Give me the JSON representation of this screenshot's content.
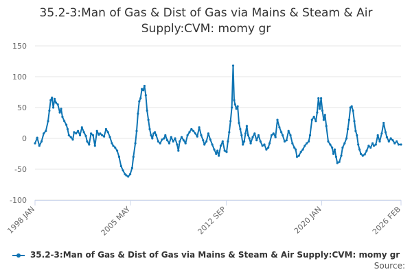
{
  "chart_data": {
    "type": "line",
    "title": "35.2-3:Man of Gas & Dist of Gas via Mains & Steam & Air Supply:CVM: momy gr",
    "xlabel": "",
    "ylabel": "",
    "ylim": [
      -100,
      150
    ],
    "yticks": [
      150,
      100,
      50,
      0,
      -50,
      -100
    ],
    "xlim": [
      1998.0,
      2026.083
    ],
    "xticks": [
      {
        "value": 1998.0,
        "label": "1998 JAN"
      },
      {
        "value": 2005.33,
        "label": "2005 MAY"
      },
      {
        "value": 2012.67,
        "label": "2012 SEP"
      },
      {
        "value": 2020.0,
        "label": "2020 JAN"
      },
      {
        "value": 2026.083,
        "label": "2026 FEB"
      }
    ],
    "legend_position": "bottom",
    "series": [
      {
        "name": "35.2-3:Man of Gas & Dist of Gas via Mains & Steam & Air Supply:CVM: momy gr",
        "color": "#0e74b3",
        "points": [
          [
            1998.0,
            -8
          ],
          [
            1998.17,
            1
          ],
          [
            1998.33,
            -12
          ],
          [
            1998.5,
            -5
          ],
          [
            1998.67,
            8
          ],
          [
            1998.83,
            12
          ],
          [
            1999.0,
            28
          ],
          [
            1999.1,
            45
          ],
          [
            1999.2,
            62
          ],
          [
            1999.3,
            66
          ],
          [
            1999.4,
            50
          ],
          [
            1999.5,
            64
          ],
          [
            1999.6,
            58
          ],
          [
            1999.75,
            55
          ],
          [
            1999.9,
            42
          ],
          [
            2000.0,
            48
          ],
          [
            2000.1,
            35
          ],
          [
            2000.25,
            28
          ],
          [
            2000.4,
            22
          ],
          [
            2000.5,
            15
          ],
          [
            2000.6,
            5
          ],
          [
            2000.75,
            2
          ],
          [
            2000.9,
            -2
          ],
          [
            2001.0,
            10
          ],
          [
            2001.15,
            8
          ],
          [
            2001.3,
            12
          ],
          [
            2001.45,
            5
          ],
          [
            2001.6,
            18
          ],
          [
            2001.75,
            10
          ],
          [
            2001.9,
            4
          ],
          [
            2002.0,
            -5
          ],
          [
            2002.15,
            -10
          ],
          [
            2002.3,
            8
          ],
          [
            2002.45,
            5
          ],
          [
            2002.6,
            -12
          ],
          [
            2002.75,
            12
          ],
          [
            2002.9,
            6
          ],
          [
            2003.0,
            8
          ],
          [
            2003.15,
            5
          ],
          [
            2003.3,
            3
          ],
          [
            2003.45,
            15
          ],
          [
            2003.6,
            10
          ],
          [
            2003.75,
            2
          ],
          [
            2003.9,
            -8
          ],
          [
            2004.0,
            -12
          ],
          [
            2004.15,
            -15
          ],
          [
            2004.3,
            -20
          ],
          [
            2004.45,
            -30
          ],
          [
            2004.6,
            -45
          ],
          [
            2004.75,
            -52
          ],
          [
            2004.9,
            -58
          ],
          [
            2005.0,
            -60
          ],
          [
            2005.15,
            -62
          ],
          [
            2005.3,
            -58
          ],
          [
            2005.45,
            -48
          ],
          [
            2005.55,
            -30
          ],
          [
            2005.7,
            -8
          ],
          [
            2005.8,
            12
          ],
          [
            2005.9,
            40
          ],
          [
            2006.0,
            60
          ],
          [
            2006.1,
            65
          ],
          [
            2006.2,
            80
          ],
          [
            2006.3,
            78
          ],
          [
            2006.4,
            85
          ],
          [
            2006.5,
            70
          ],
          [
            2006.6,
            45
          ],
          [
            2006.7,
            30
          ],
          [
            2006.8,
            15
          ],
          [
            2006.9,
            5
          ],
          [
            2007.0,
            0
          ],
          [
            2007.1,
            8
          ],
          [
            2007.2,
            10
          ],
          [
            2007.3,
            5
          ],
          [
            2007.45,
            -5
          ],
          [
            2007.6,
            -8
          ],
          [
            2007.75,
            -2
          ],
          [
            2007.9,
            0
          ],
          [
            2008.0,
            5
          ],
          [
            2008.15,
            -3
          ],
          [
            2008.3,
            -8
          ],
          [
            2008.45,
            2
          ],
          [
            2008.6,
            -5
          ],
          [
            2008.75,
            0
          ],
          [
            2008.9,
            -10
          ],
          [
            2009.0,
            -20
          ],
          [
            2009.1,
            -5
          ],
          [
            2009.25,
            2
          ],
          [
            2009.4,
            -3
          ],
          [
            2009.55,
            -8
          ],
          [
            2009.7,
            5
          ],
          [
            2009.85,
            10
          ],
          [
            2010.0,
            15
          ],
          [
            2010.15,
            12
          ],
          [
            2010.3,
            8
          ],
          [
            2010.45,
            3
          ],
          [
            2010.6,
            18
          ],
          [
            2010.75,
            5
          ],
          [
            2010.9,
            -3
          ],
          [
            2011.0,
            -10
          ],
          [
            2011.15,
            -5
          ],
          [
            2011.3,
            8
          ],
          [
            2011.45,
            -2
          ],
          [
            2011.6,
            -10
          ],
          [
            2011.75,
            -18
          ],
          [
            2011.9,
            -25
          ],
          [
            2012.0,
            -20
          ],
          [
            2012.1,
            -28
          ],
          [
            2012.25,
            -12
          ],
          [
            2012.4,
            -5
          ],
          [
            2012.55,
            -20
          ],
          [
            2012.7,
            -22
          ],
          [
            2012.8,
            -5
          ],
          [
            2012.9,
            10
          ],
          [
            2013.0,
            28
          ],
          [
            2013.1,
            50
          ],
          [
            2013.2,
            118
          ],
          [
            2013.28,
            62
          ],
          [
            2013.35,
            55
          ],
          [
            2013.45,
            48
          ],
          [
            2013.55,
            52
          ],
          [
            2013.65,
            25
          ],
          [
            2013.75,
            15
          ],
          [
            2013.85,
            5
          ],
          [
            2013.95,
            -10
          ],
          [
            2014.05,
            -5
          ],
          [
            2014.15,
            8
          ],
          [
            2014.25,
            20
          ],
          [
            2014.35,
            5
          ],
          [
            2014.45,
            0
          ],
          [
            2014.55,
            -8
          ],
          [
            2014.7,
            2
          ],
          [
            2014.85,
            8
          ],
          [
            2015.0,
            -3
          ],
          [
            2015.15,
            5
          ],
          [
            2015.3,
            -5
          ],
          [
            2015.45,
            -12
          ],
          [
            2015.6,
            -10
          ],
          [
            2015.75,
            -18
          ],
          [
            2015.9,
            -15
          ],
          [
            2016.0,
            -8
          ],
          [
            2016.15,
            5
          ],
          [
            2016.3,
            8
          ],
          [
            2016.45,
            2
          ],
          [
            2016.6,
            30
          ],
          [
            2016.75,
            18
          ],
          [
            2016.9,
            10
          ],
          [
            2017.0,
            5
          ],
          [
            2017.15,
            -5
          ],
          [
            2017.3,
            -3
          ],
          [
            2017.45,
            12
          ],
          [
            2017.6,
            5
          ],
          [
            2017.75,
            -8
          ],
          [
            2017.9,
            -15
          ],
          [
            2018.0,
            -18
          ],
          [
            2018.1,
            -30
          ],
          [
            2018.25,
            -28
          ],
          [
            2018.4,
            -22
          ],
          [
            2018.55,
            -18
          ],
          [
            2018.7,
            -12
          ],
          [
            2018.85,
            -8
          ],
          [
            2019.0,
            -5
          ],
          [
            2019.1,
            5
          ],
          [
            2019.25,
            30
          ],
          [
            2019.4,
            35
          ],
          [
            2019.55,
            28
          ],
          [
            2019.65,
            42
          ],
          [
            2019.75,
            65
          ],
          [
            2019.85,
            48
          ],
          [
            2019.95,
            65
          ],
          [
            2020.05,
            45
          ],
          [
            2020.15,
            30
          ],
          [
            2020.25,
            38
          ],
          [
            2020.35,
            20
          ],
          [
            2020.5,
            -5
          ],
          [
            2020.65,
            -10
          ],
          [
            2020.8,
            -15
          ],
          [
            2020.9,
            -25
          ],
          [
            2021.0,
            -18
          ],
          [
            2021.1,
            -30
          ],
          [
            2021.2,
            -40
          ],
          [
            2021.35,
            -38
          ],
          [
            2021.5,
            -28
          ],
          [
            2021.6,
            -15
          ],
          [
            2021.75,
            -8
          ],
          [
            2021.9,
            0
          ],
          [
            2022.0,
            15
          ],
          [
            2022.1,
            30
          ],
          [
            2022.2,
            50
          ],
          [
            2022.3,
            52
          ],
          [
            2022.4,
            45
          ],
          [
            2022.5,
            28
          ],
          [
            2022.6,
            12
          ],
          [
            2022.7,
            5
          ],
          [
            2022.8,
            -10
          ],
          [
            2022.9,
            -18
          ],
          [
            2023.0,
            -25
          ],
          [
            2023.15,
            -28
          ],
          [
            2023.3,
            -26
          ],
          [
            2023.45,
            -20
          ],
          [
            2023.6,
            -12
          ],
          [
            2023.75,
            -15
          ],
          [
            2023.9,
            -8
          ],
          [
            2024.0,
            -12
          ],
          [
            2024.15,
            -10
          ],
          [
            2024.3,
            5
          ],
          [
            2024.45,
            -5
          ],
          [
            2024.6,
            8
          ],
          [
            2024.75,
            25
          ],
          [
            2024.9,
            10
          ],
          [
            2025.0,
            2
          ],
          [
            2025.15,
            -5
          ],
          [
            2025.3,
            0
          ],
          [
            2025.45,
            -3
          ],
          [
            2025.6,
            -8
          ],
          [
            2025.75,
            -5
          ],
          [
            2025.9,
            -10
          ],
          [
            2026.083,
            -10
          ]
        ]
      }
    ]
  },
  "legend": {
    "label": "35.2-3:Man of Gas & Dist of Gas via Mains & Steam & Air Supply:CVM: momy gr"
  },
  "source_label": "Source:"
}
